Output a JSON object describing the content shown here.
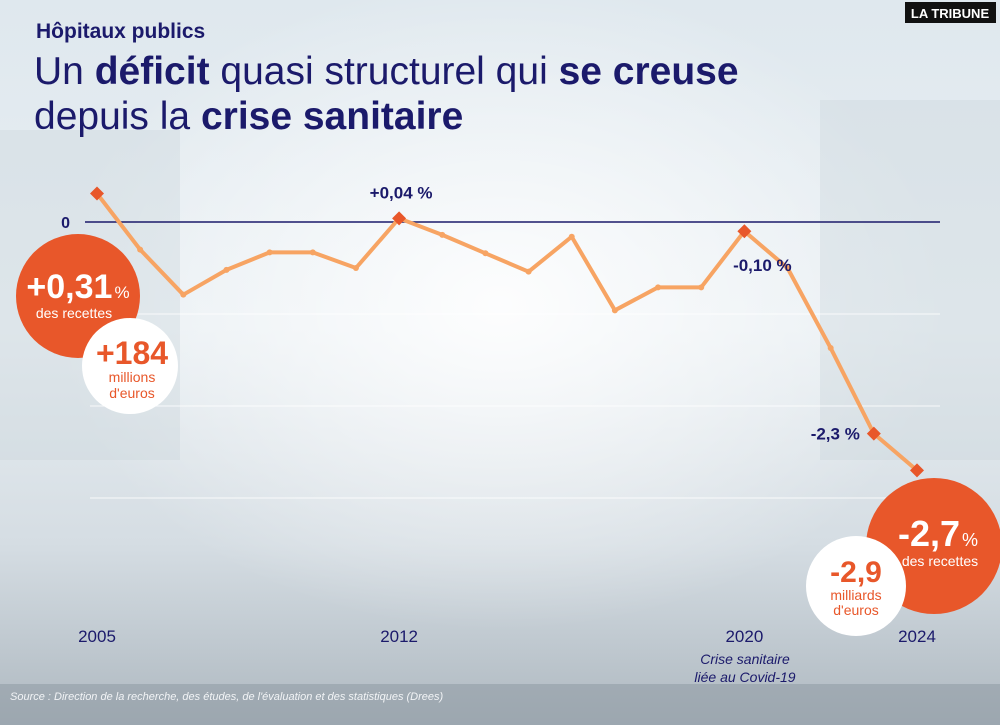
{
  "chart_data": {
    "type": "line",
    "kicker": "Hôpitaux publics",
    "title_lines": [
      [
        {
          "text": "Un ",
          "bold": false
        },
        {
          "text": "déficit",
          "bold": true
        },
        {
          "text": " quasi structurel qui ",
          "bold": false
        },
        {
          "text": "se creuse",
          "bold": true
        }
      ],
      [
        {
          "text": "depuis la ",
          "bold": false
        },
        {
          "text": "crise sanitaire",
          "bold": true
        }
      ]
    ],
    "logo": "LA TRIBUNE",
    "x": [
      2005,
      2006,
      2007,
      2008,
      2009,
      2010,
      2011,
      2012,
      2013,
      2014,
      2015,
      2016,
      2017,
      2018,
      2019,
      2020,
      2021,
      2022,
      2023,
      2024
    ],
    "values": [
      0.31,
      -0.3,
      -0.79,
      -0.52,
      -0.33,
      -0.33,
      -0.5,
      0.04,
      -0.14,
      -0.34,
      -0.54,
      -0.16,
      -0.96,
      -0.71,
      -0.71,
      -0.1,
      -0.5,
      -1.37,
      -2.3,
      -2.7
    ],
    "value_labels": [
      null,
      null,
      null,
      null,
      null,
      null,
      null,
      "+0,04 %",
      null,
      null,
      null,
      null,
      null,
      null,
      null,
      "-0,10 %",
      null,
      null,
      "-2,3 %",
      null
    ],
    "diamond_markers": [
      2005,
      2012,
      2020,
      2023,
      2024
    ],
    "color": "#f7a463",
    "marker_color": "#e8572a",
    "xlim": [
      2005,
      2024
    ],
    "xticks": [
      2005,
      2012,
      2020,
      2024
    ],
    "ylim": [
      -4.2,
      0.8
    ],
    "yticks": [
      0
    ],
    "gridlines": [
      -1,
      -2,
      -3
    ],
    "annotations": {
      "start_ratio": {
        "value": "+0,31",
        "unit": "%",
        "text": "des recettes"
      },
      "start_amount": {
        "value": "+184",
        "text_lines": [
          "millions",
          "d'euros"
        ]
      },
      "end_ratio": {
        "value": "-2,7",
        "unit": "%",
        "text": "des recettes"
      },
      "end_amount": {
        "value": "-2,9",
        "text_lines": [
          "milliards",
          "d'euros"
        ]
      },
      "covid": [
        "Crise sanitaire",
        "liée au Covid-19"
      ]
    },
    "source": "Source : Direction de la recherche, des études, de l'évaluation et des statistiques (Drees)"
  }
}
